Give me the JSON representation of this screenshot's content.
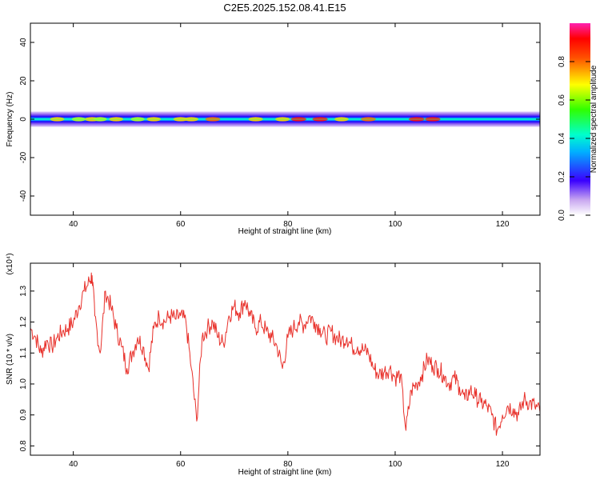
{
  "title": "C2E5.2025.152.08.41.E15",
  "chart_data": [
    {
      "type": "heatmap",
      "xlabel": "Height of straight line (km)",
      "ylabel": "Frequency (Hz)",
      "xlim": [
        32,
        127
      ],
      "ylim": [
        -50,
        50
      ],
      "xticks": [
        40,
        60,
        80,
        100,
        120
      ],
      "yticks": [
        -40,
        -20,
        0,
        20,
        40
      ],
      "band_half_width_hz": 4,
      "colorbar": {
        "label": "Normalized spectral amplitude",
        "ticks": [
          "0.0",
          "0.2",
          "0.4",
          "0.6",
          "0.8"
        ],
        "range": [
          0,
          1
        ]
      },
      "hotspots_km": [
        {
          "x": 37,
          "amp": 0.8
        },
        {
          "x": 41,
          "amp": 0.75
        },
        {
          "x": 43.5,
          "amp": 0.85
        },
        {
          "x": 45,
          "amp": 0.7
        },
        {
          "x": 48,
          "amp": 0.8
        },
        {
          "x": 52,
          "amp": 0.75
        },
        {
          "x": 55,
          "amp": 0.8
        },
        {
          "x": 60,
          "amp": 0.85
        },
        {
          "x": 62,
          "amp": 0.8
        },
        {
          "x": 66,
          "amp": 0.9
        },
        {
          "x": 74,
          "amp": 0.85
        },
        {
          "x": 79,
          "amp": 0.85
        },
        {
          "x": 82,
          "amp": 0.95
        },
        {
          "x": 86,
          "amp": 0.95
        },
        {
          "x": 90,
          "amp": 0.8
        },
        {
          "x": 95,
          "amp": 0.9
        },
        {
          "x": 104,
          "amp": 1.0
        },
        {
          "x": 107,
          "amp": 0.95
        }
      ]
    },
    {
      "type": "line",
      "xlabel": "Height of straight line (km)",
      "ylabel": "SNR (10 * v/v)",
      "y_multiplier": "(x10⁴)",
      "xlim": [
        32,
        127
      ],
      "ylim": [
        0.77,
        1.39
      ],
      "xticks": [
        40,
        60,
        80,
        100,
        120
      ],
      "yticks": [
        "0.8",
        "0.9",
        "1.0",
        "1.1",
        "1.2",
        "1.3"
      ],
      "series": [
        {
          "color": "#e8302a",
          "x": [
            32,
            33,
            34,
            35,
            36,
            37,
            38,
            39,
            40,
            41,
            42,
            43,
            43.5,
            44,
            45,
            46,
            47,
            48,
            49,
            50,
            51,
            52,
            53,
            54,
            55,
            56,
            57,
            58,
            59,
            60,
            61,
            62,
            63,
            64,
            65,
            66,
            67,
            68,
            69,
            70,
            71,
            72,
            73,
            74,
            75,
            76,
            77,
            78,
            79,
            80,
            81,
            82,
            83,
            84,
            85,
            86,
            87,
            88,
            89,
            90,
            91,
            92,
            93,
            94,
            95,
            96,
            97,
            98,
            99,
            100,
            101,
            102,
            103,
            104,
            105,
            106,
            107,
            108,
            109,
            110,
            111,
            112,
            113,
            114,
            115,
            116,
            117,
            118,
            119,
            120,
            121,
            122,
            123,
            124,
            125,
            126,
            127
          ],
          "values": [
            1.18,
            1.15,
            1.1,
            1.14,
            1.12,
            1.15,
            1.17,
            1.18,
            1.2,
            1.25,
            1.3,
            1.33,
            1.35,
            1.22,
            1.1,
            1.3,
            1.25,
            1.18,
            1.12,
            1.05,
            1.1,
            1.15,
            1.12,
            1.05,
            1.18,
            1.22,
            1.2,
            1.22,
            1.21,
            1.22,
            1.2,
            1.05,
            0.88,
            1.15,
            1.18,
            1.2,
            1.15,
            1.13,
            1.22,
            1.25,
            1.23,
            1.27,
            1.22,
            1.18,
            1.2,
            1.17,
            1.15,
            1.12,
            1.05,
            1.15,
            1.18,
            1.2,
            1.19,
            1.22,
            1.2,
            1.18,
            1.15,
            1.17,
            1.15,
            1.14,
            1.15,
            1.12,
            1.12,
            1.11,
            1.1,
            1.05,
            1.03,
            1.04,
            1.05,
            1.02,
            1.03,
            0.85,
            0.98,
            1.0,
            1.03,
            1.08,
            1.06,
            1.05,
            1.03,
            1.0,
            1.02,
            0.99,
            0.95,
            0.98,
            0.96,
            0.94,
            0.93,
            0.9,
            0.85,
            0.9,
            0.93,
            0.92,
            0.9,
            0.95,
            0.94,
            0.93,
            0.91
          ]
        }
      ]
    }
  ]
}
